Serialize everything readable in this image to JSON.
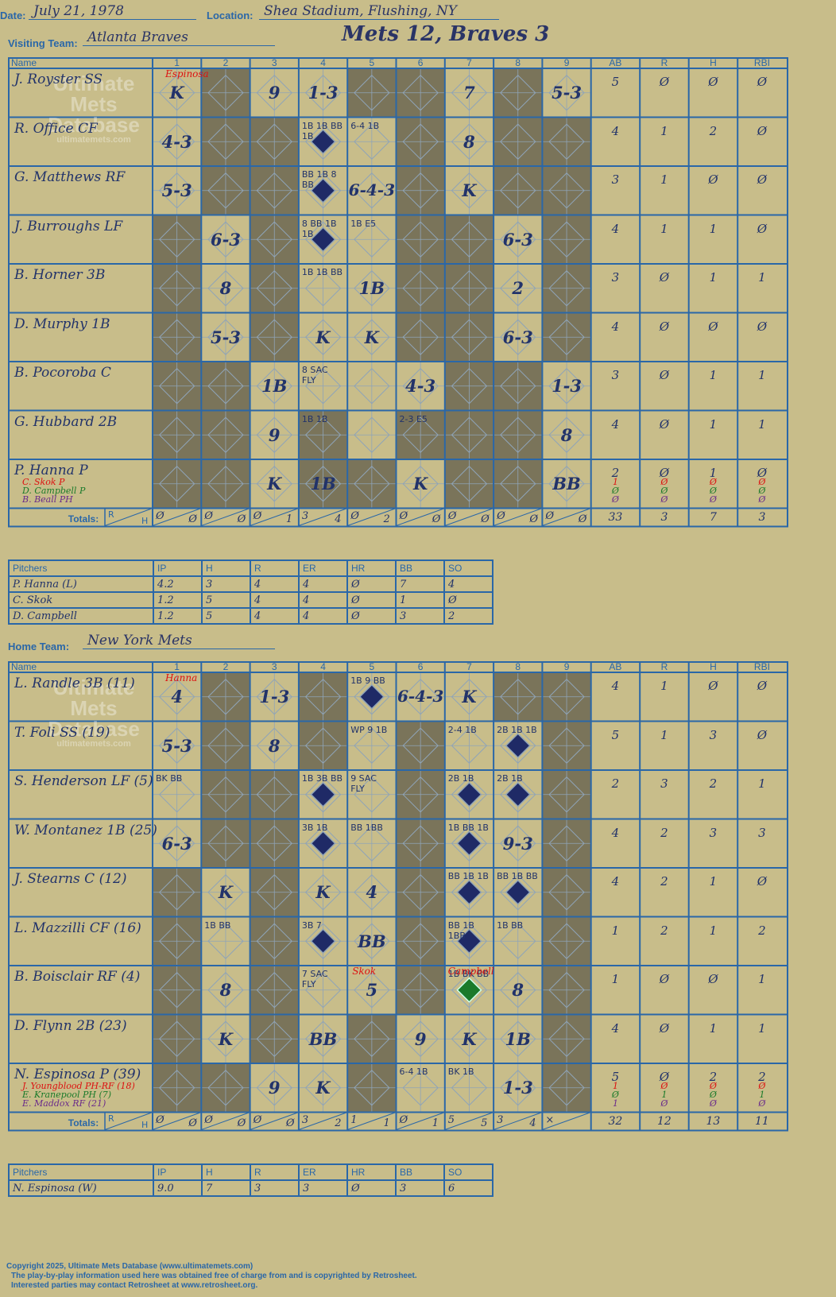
{
  "header": {
    "date_label": "Date:",
    "date": "July 21, 1978",
    "location_label": "Location:",
    "location": "Shea Stadium, Flushing, NY",
    "visiting_label": "Visiting Team:",
    "visiting_team": "Atlanta Braves",
    "home_label": "Home Team:",
    "home_team": "New York Mets",
    "title": "Mets 12, Braves 3"
  },
  "columns": {
    "name": "Name",
    "innings": [
      "1",
      "2",
      "3",
      "4",
      "5",
      "6",
      "7",
      "8",
      "9"
    ],
    "stats": [
      "AB",
      "R",
      "H",
      "RBI"
    ],
    "totals_label": "Totals:",
    "r_label": "R",
    "h_label": "H"
  },
  "watermark": {
    "l1": "Ultimate",
    "l2": "Mets",
    "l3": "Database",
    "l4": "ultimatemets.com"
  },
  "visitors": {
    "starting_pitcher_note": "Espinosa",
    "players": [
      {
        "name": "J. Royster SS",
        "ab": "5",
        "r": "Ø",
        "h": "Ø",
        "rbi": "Ø"
      },
      {
        "name": "R. Office CF",
        "ab": "4",
        "r": "1",
        "h": "2",
        "rbi": "Ø"
      },
      {
        "name": "G. Matthews RF",
        "ab": "3",
        "r": "1",
        "h": "Ø",
        "rbi": "Ø"
      },
      {
        "name": "J. Burroughs LF",
        "ab": "4",
        "r": "1",
        "h": "1",
        "rbi": "Ø"
      },
      {
        "name": "B. Horner 3B",
        "ab": "3",
        "r": "Ø",
        "h": "1",
        "rbi": "1"
      },
      {
        "name": "D. Murphy 1B",
        "ab": "4",
        "r": "Ø",
        "h": "Ø",
        "rbi": "Ø"
      },
      {
        "name": "B. Pocoroba C",
        "ab": "3",
        "r": "Ø",
        "h": "1",
        "rbi": "1"
      },
      {
        "name": "G. Hubbard 2B",
        "ab": "4",
        "r": "Ø",
        "h": "1",
        "rbi": "1"
      },
      {
        "name": "P. Hanna P",
        "ab": "2",
        "r": "Ø",
        "h": "1",
        "rbi": "Ø"
      }
    ],
    "subs": [
      {
        "name": "C. Skok P",
        "color": "#d11",
        "ab": "1",
        "r": "Ø",
        "h": "Ø",
        "rbi": "Ø"
      },
      {
        "name": "D. Campbell P",
        "color": "#1a7a2a",
        "ab": "Ø",
        "r": "Ø",
        "h": "Ø",
        "rbi": "Ø"
      },
      {
        "name": "B. Beall PH",
        "color": "#6a2a8a",
        "ab": "Ø",
        "r": "Ø",
        "h": "Ø",
        "rbi": "Ø"
      }
    ],
    "totals": {
      "inn_r": [
        "Ø",
        "Ø",
        "Ø",
        "3",
        "Ø",
        "Ø",
        "Ø",
        "Ø",
        "Ø"
      ],
      "inn_h": [
        "Ø",
        "Ø",
        "1",
        "4",
        "2",
        "Ø",
        "Ø",
        "Ø",
        "Ø"
      ],
      "ab": "33",
      "r": "3",
      "h": "7",
      "rbi": "3"
    },
    "pitchers_header": [
      "Pitchers",
      "IP",
      "H",
      "R",
      "ER",
      "HR",
      "BB",
      "SO"
    ],
    "pitchers": [
      [
        "P. Hanna (L)",
        "4.2",
        "3",
        "4",
        "4",
        "Ø",
        "7",
        "4"
      ],
      [
        "C. Skok",
        "1.2",
        "5",
        "4",
        "4",
        "Ø",
        "1",
        "Ø"
      ],
      [
        "D. Campbell",
        "1.2",
        "5",
        "4",
        "4",
        "Ø",
        "3",
        "2"
      ]
    ]
  },
  "home": {
    "starting_pitcher_note": "Hanna",
    "players": [
      {
        "name": "L. Randle 3B (11)",
        "ab": "4",
        "r": "1",
        "h": "Ø",
        "rbi": "Ø"
      },
      {
        "name": "T. Foli SS (19)",
        "ab": "5",
        "r": "1",
        "h": "3",
        "rbi": "Ø"
      },
      {
        "name": "S. Henderson LF (5)",
        "ab": "2",
        "r": "3",
        "h": "2",
        "rbi": "1"
      },
      {
        "name": "W. Montanez 1B (25)",
        "ab": "4",
        "r": "2",
        "h": "3",
        "rbi": "3"
      },
      {
        "name": "J. Stearns C (12)",
        "ab": "4",
        "r": "2",
        "h": "1",
        "rbi": "Ø"
      },
      {
        "name": "L. Mazzilli CF (16)",
        "ab": "1",
        "r": "2",
        "h": "1",
        "rbi": "2"
      },
      {
        "name": "B. Boisclair RF (4)",
        "ab": "1",
        "r": "Ø",
        "h": "Ø",
        "rbi": "1"
      },
      {
        "name": "D. Flynn 2B (23)",
        "ab": "4",
        "r": "Ø",
        "h": "1",
        "rbi": "1"
      },
      {
        "name": "N. Espinosa P (39)",
        "ab": "5",
        "r": "Ø",
        "h": "2",
        "rbi": "2"
      }
    ],
    "subs": [
      {
        "name": "J. Youngblood PH-RF (18)",
        "color": "#d11",
        "ab": "1",
        "r": "Ø",
        "h": "Ø",
        "rbi": "Ø"
      },
      {
        "name": "E. Kranepool PH (7)",
        "color": "#1a7a2a",
        "ab": "Ø",
        "r": "1",
        "h": "Ø",
        "rbi": "1"
      },
      {
        "name": "E. Maddox RF (21)",
        "color": "#6a2a8a",
        "ab": "1",
        "r": "Ø",
        "h": "Ø",
        "rbi": "Ø"
      }
    ],
    "totals": {
      "inn_r": [
        "Ø",
        "Ø",
        "Ø",
        "3",
        "1",
        "Ø",
        "5",
        "3",
        "×"
      ],
      "inn_h": [
        "Ø",
        "Ø",
        "Ø",
        "2",
        "1",
        "1",
        "5",
        "4",
        ""
      ],
      "ab": "32",
      "r": "12",
      "h": "13",
      "rbi": "11"
    },
    "pitchers_header": [
      "Pitchers",
      "IP",
      "H",
      "R",
      "ER",
      "HR",
      "BB",
      "SO"
    ],
    "pitchers": [
      [
        "N. Espinosa (W)",
        "9.0",
        "7",
        "3",
        "3",
        "Ø",
        "3",
        "6"
      ]
    ]
  },
  "plays_visitors": [
    [
      "K",
      "",
      "9",
      "1-3",
      "",
      "",
      "7",
      "",
      "5-3"
    ],
    [
      "4-3",
      "",
      "",
      "1B 1B BB 1B",
      "6-4 1B",
      "",
      "8",
      "",
      ""
    ],
    [
      "5-3",
      "",
      "",
      "BB 1B 8 BB",
      "6-4-3",
      "",
      "K",
      "",
      ""
    ],
    [
      "",
      "6-3",
      "",
      "8 BB 1B 1B",
      "1B E5",
      "",
      "",
      "6-3",
      ""
    ],
    [
      "",
      "8",
      "",
      "1B 1B BB",
      "1B",
      "",
      "",
      "2",
      ""
    ],
    [
      "",
      "5-3",
      "",
      "K",
      "K",
      "",
      "",
      "6-3",
      ""
    ],
    [
      "",
      "",
      "1B",
      "8 SAC FLY",
      "",
      "4-3",
      "",
      "",
      "1-3"
    ],
    [
      "",
      "",
      "9",
      "1B 1B",
      "",
      "2-3 E5",
      "",
      "",
      "8"
    ],
    [
      "",
      "",
      "K",
      "1B",
      "",
      "K",
      "",
      "",
      "BB"
    ]
  ],
  "plays_home": [
    [
      "4",
      "",
      "1-3",
      "",
      "1B 9 BB",
      "6-4-3",
      "K",
      "",
      ""
    ],
    [
      "5-3",
      "",
      "8",
      "",
      "WP 9 1B",
      "",
      "2-4 1B",
      "2B 1B 1B",
      ""
    ],
    [
      "BK BB",
      "",
      "",
      "1B 3B BB",
      "9 SAC FLY",
      "",
      "2B 1B",
      "2B 1B",
      ""
    ],
    [
      "6-3",
      "",
      "",
      "3B 1B",
      "BB 1BB",
      "",
      "1B BB 1B",
      "9-3",
      ""
    ],
    [
      "",
      "K",
      "",
      "K",
      "4",
      "",
      "BB 1B 1B",
      "BB 1B BB",
      ""
    ],
    [
      "",
      "1B BB",
      "",
      "3B 7",
      "BB",
      "",
      "BB 1B 1BB",
      "1B BB",
      ""
    ],
    [
      "",
      "8",
      "",
      "7 SAC FLY",
      "5",
      "",
      "1B BK BB",
      "8",
      ""
    ],
    [
      "",
      "K",
      "",
      "BB",
      "",
      "9",
      "K",
      "1B",
      ""
    ],
    [
      "",
      "",
      "9",
      "K",
      "",
      "6-4 1B",
      "BK 1B",
      "1-3",
      ""
    ]
  ],
  "pitcher_change_notes": {
    "visitor_k_inning6": "K",
    "home_skok": "Skok",
    "home_campbell": "Campbell"
  },
  "footer": {
    "l1": "Copyright 2025, Ultimate Mets Database (www.ultimatemets.com)",
    "l2": "The play-by-play information used here was obtained free of charge from and is copyrighted by Retrosheet.",
    "l3": "Interested parties may contact Retrosheet at www.retrosheet.org."
  },
  "colors": {
    "grid": "#2a67a8",
    "bg": "#c8bd8a",
    "shade": "#7a745a",
    "ink": "#22336a",
    "diamond": "#1f2a66",
    "run_green": "#1a7a2a"
  }
}
